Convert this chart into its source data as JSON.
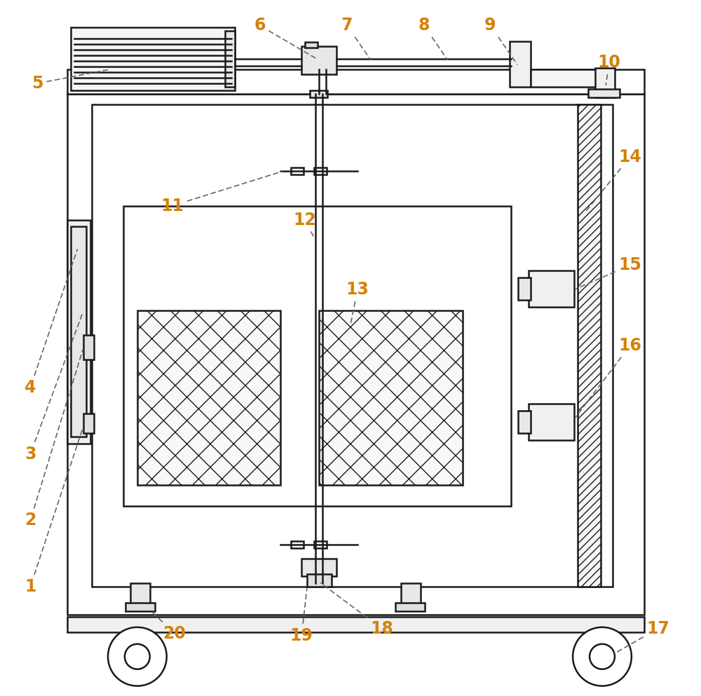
{
  "bg_color": "#ffffff",
  "line_color": "#1a1a1a",
  "label_color": "#d4820a",
  "fig_width": 10.0,
  "fig_height": 9.93,
  "label_fontsize": 17
}
